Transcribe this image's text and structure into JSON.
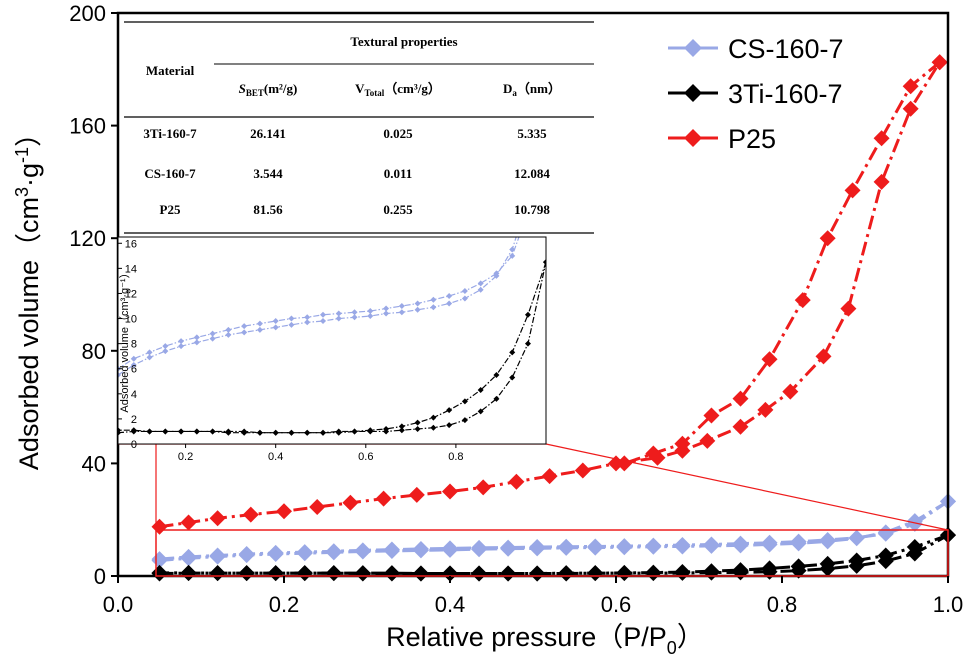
{
  "chart_data": [
    {
      "type": "line",
      "title": "",
      "xlabel": "Relative pressure（P/P₀）",
      "ylabel": "Adsorbed volume（cm³·g⁻¹）",
      "xlim": [
        0.0,
        1.0
      ],
      "ylim": [
        0,
        200
      ],
      "x_ticks": [
        "0.0",
        "0.2",
        "0.4",
        "0.6",
        "0.8",
        "1.0"
      ],
      "y_ticks": [
        "0",
        "40",
        "80",
        "120",
        "160",
        "200"
      ],
      "legend_position": "top-right",
      "series": [
        {
          "name": "CS-160-7",
          "color": "#99a8e6",
          "marker": "diamond",
          "adsorption": {
            "x": [
              0.05,
              0.085,
              0.12,
              0.155,
              0.19,
              0.225,
              0.26,
              0.295,
              0.33,
              0.365,
              0.4,
              0.435,
              0.47,
              0.505,
              0.54,
              0.575,
              0.61,
              0.645,
              0.68,
              0.715,
              0.75,
              0.785,
              0.82,
              0.855,
              0.89,
              0.925,
              0.96,
              1.0
            ],
            "y": [
              5.5,
              6.3,
              6.9,
              7.4,
              7.8,
              8.1,
              8.4,
              8.7,
              8.9,
              9.1,
              9.3,
              9.5,
              9.7,
              9.8,
              10.0,
              10.1,
              10.2,
              10.4,
              10.5,
              10.7,
              10.9,
              11.2,
              11.6,
              12.3,
              13.4,
              15.5,
              19.5,
              26.5
            ]
          },
          "desorption": {
            "x": [
              1.0,
              0.96,
              0.925,
              0.89,
              0.855,
              0.82,
              0.785,
              0.75,
              0.715,
              0.68,
              0.645,
              0.61,
              0.575,
              0.54,
              0.505,
              0.47,
              0.435,
              0.4,
              0.365,
              0.33,
              0.295,
              0.26,
              0.225,
              0.19,
              0.155,
              0.12,
              0.085,
              0.05
            ],
            "y": [
              26.5,
              18.5,
              15.0,
              13.6,
              12.8,
              12.2,
              11.8,
              11.5,
              11.2,
              11.0,
              10.8,
              10.6,
              10.5,
              10.4,
              10.3,
              10.1,
              10.0,
              9.8,
              9.6,
              9.4,
              9.1,
              8.8,
              8.5,
              8.2,
              7.8,
              7.3,
              6.8,
              6.0
            ]
          }
        },
        {
          "name": "3Ti-160-7",
          "color": "#000000",
          "marker": "diamond",
          "adsorption": {
            "x": [
              0.05,
              0.085,
              0.12,
              0.155,
              0.19,
              0.225,
              0.26,
              0.295,
              0.33,
              0.365,
              0.4,
              0.435,
              0.47,
              0.505,
              0.54,
              0.575,
              0.61,
              0.645,
              0.68,
              0.715,
              0.75,
              0.785,
              0.82,
              0.855,
              0.89,
              0.925,
              0.96,
              1.0
            ],
            "y": [
              0.9,
              1.0,
              1.0,
              1.0,
              1.0,
              1.0,
              1.0,
              0.9,
              0.9,
              0.9,
              0.9,
              0.9,
              0.9,
              0.9,
              0.9,
              1.0,
              1.0,
              1.0,
              1.1,
              1.2,
              1.3,
              1.5,
              1.9,
              2.6,
              3.6,
              5.3,
              8.0,
              14.5
            ]
          },
          "desorption": {
            "x": [
              1.0,
              0.96,
              0.925,
              0.89,
              0.855,
              0.82,
              0.785,
              0.75,
              0.715,
              0.68,
              0.645,
              0.61,
              0.575,
              0.54,
              0.505,
              0.47,
              0.435,
              0.4,
              0.365,
              0.33,
              0.295,
              0.26,
              0.225,
              0.19,
              0.155,
              0.12,
              0.085,
              0.05
            ],
            "y": [
              14.5,
              10.3,
              7.3,
              5.5,
              4.3,
              3.4,
              2.7,
              2.1,
              1.7,
              1.4,
              1.2,
              1.1,
              1.0,
              1.0,
              0.9,
              0.9,
              0.9,
              0.9,
              0.9,
              1.0,
              1.0,
              1.0,
              1.0,
              1.0,
              1.0,
              1.0,
              1.1,
              1.1
            ]
          }
        },
        {
          "name": "P25",
          "color": "#ee1c1c",
          "marker": "diamond",
          "adsorption": {
            "x": [
              0.05,
              0.085,
              0.12,
              0.16,
              0.2,
              0.24,
              0.28,
              0.32,
              0.36,
              0.4,
              0.44,
              0.48,
              0.52,
              0.56,
              0.6,
              0.65,
              0.68,
              0.71,
              0.75,
              0.78,
              0.81,
              0.85,
              0.88,
              0.92,
              0.955,
              0.99
            ],
            "y": [
              17.5,
              19.0,
              20.5,
              21.8,
              23.0,
              24.5,
              26.0,
              27.5,
              28.8,
              30.0,
              31.5,
              33.5,
              35.5,
              37.5,
              40.0,
              42.0,
              44.5,
              48.0,
              53.0,
              59.0,
              65.5,
              78.0,
              95.0,
              140.0,
              166.0,
              182.5
            ]
          },
          "desorption": {
            "x": [
              0.99,
              0.955,
              0.92,
              0.885,
              0.855,
              0.825,
              0.785,
              0.75,
              0.715,
              0.68,
              0.645,
              0.61
            ],
            "y": [
              182.5,
              174.0,
              155.5,
              137.0,
              120.0,
              98.0,
              77.0,
              63.0,
              57.0,
              47.0,
              43.5,
              40.0
            ]
          }
        }
      ],
      "highlight_box": {
        "x": [
          0.05,
          1.0
        ],
        "y": [
          0,
          16
        ]
      }
    },
    {
      "type": "line",
      "title": "",
      "xlabel": "",
      "ylabel": "Adsorbed volume（cm³·g⁻¹）",
      "xlim": [
        0.05,
        1.0
      ],
      "ylim": [
        0,
        16.5
      ],
      "x_ticks": [
        "0.2",
        "0.4",
        "0.6",
        "0.8"
      ],
      "y_ticks": [
        "0",
        "2",
        "4",
        "6",
        "8",
        "10",
        "12",
        "14",
        "16"
      ],
      "series_ref": [
        "CS-160-7",
        "3Ti-160-7"
      ]
    },
    {
      "type": "table",
      "header": {
        "col1": "Material",
        "group": "Textural properties",
        "sbet_main": "S",
        "sbet_sub": "BET",
        "sbet_unit": "(m²/g)",
        "vtotal_main": "V",
        "vtotal_sub": "Total",
        "vtotal_unit": "（cm³/g）",
        "da_main": "D",
        "da_sub": "a",
        "da_unit": "（nm）"
      },
      "rows": [
        {
          "material": "3Ti-160-7",
          "sbet": "26.141",
          "vtotal": "0.025",
          "da": "5.335"
        },
        {
          "material": "CS-160-7",
          "sbet": "3.544",
          "vtotal": "0.011",
          "da": "12.084"
        },
        {
          "material": "P25",
          "sbet": "81.56",
          "vtotal": "0.255",
          "da": "10.798"
        }
      ]
    }
  ],
  "legend": [
    {
      "label": "CS-160-7",
      "color": "#99a8e6"
    },
    {
      "label": "3Ti-160-7",
      "color": "#000000"
    },
    {
      "label": "P25",
      "color": "#ee1c1c"
    }
  ],
  "axis": {
    "ylabel_main": "Adsorbed volume（cm",
    "ylabel_sup1": "3",
    "ylabel_mid": "·g",
    "ylabel_sup2": "-1",
    "ylabel_end": "）",
    "xlabel_main": "Relative pressure（P/P",
    "xlabel_sub": "0",
    "xlabel_end": "）",
    "inset_ylabel": "Adsorbed volume（cm³·g⁻¹）"
  }
}
